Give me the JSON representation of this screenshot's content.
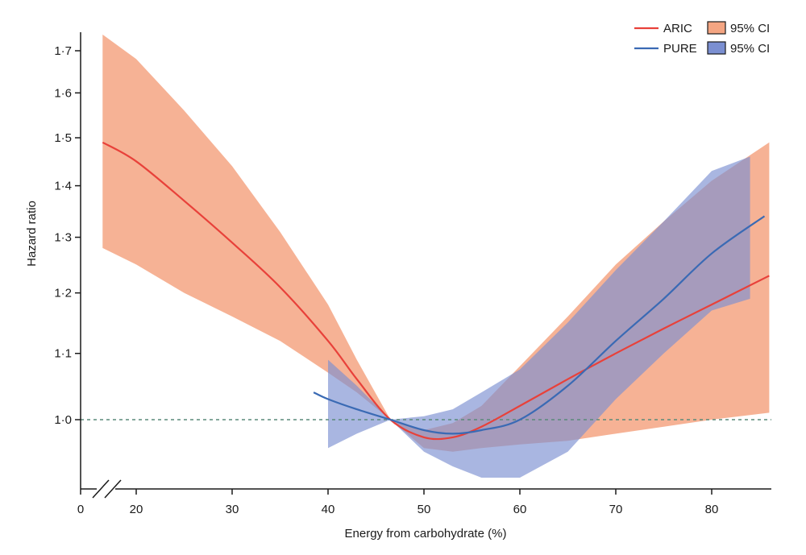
{
  "chart_data": {
    "type": "line",
    "title": "",
    "xlabel": "Energy from carbohydrate (%)",
    "ylabel": "Hazard ratio",
    "x_axis_break_label": "0",
    "xlim": [
      15,
      86
    ],
    "ylim": [
      0.9,
      1.75
    ],
    "y_scale": "log",
    "xticks": [
      20,
      30,
      40,
      50,
      60,
      70,
      80
    ],
    "yticks": [
      1.0,
      1.1,
      1.2,
      1.3,
      1.4,
      1.5,
      1.6,
      1.7
    ],
    "ytick_labels": [
      "1·0",
      "1·1",
      "1·2",
      "1·3",
      "1·4",
      "1·5",
      "1·6",
      "1·7"
    ],
    "reference_line": {
      "y": 1.0,
      "style": "dashed",
      "color": "#5a8a7a"
    },
    "legend": {
      "placement": "top-right"
    },
    "series": [
      {
        "name": "ARIC",
        "color": "#e8413a",
        "band_label": "95% CI",
        "band_color": "#f4a582",
        "x": [
          16.5,
          20,
          25,
          30,
          35,
          40,
          43,
          46.5,
          50,
          53,
          56,
          60,
          65,
          70,
          75,
          80,
          86
        ],
        "y": [
          1.49,
          1.45,
          1.37,
          1.29,
          1.21,
          1.12,
          1.06,
          1.0,
          0.975,
          0.975,
          0.99,
          1.02,
          1.06,
          1.1,
          1.14,
          1.18,
          1.23
        ],
        "lower": [
          1.28,
          1.25,
          1.2,
          1.16,
          1.12,
          1.07,
          1.04,
          1.0,
          0.96,
          0.955,
          0.96,
          0.965,
          0.97,
          0.98,
          0.99,
          1.0,
          1.01
        ],
        "upper": [
          1.74,
          1.68,
          1.56,
          1.44,
          1.31,
          1.18,
          1.09,
          1.0,
          0.985,
          0.995,
          1.02,
          1.08,
          1.16,
          1.25,
          1.33,
          1.41,
          1.49
        ]
      },
      {
        "name": "PURE",
        "color": "#3a6ab4",
        "band_label": "95% CI",
        "band_color": "#7b8fd1",
        "x": [
          38.5,
          40,
          43,
          46.5,
          50,
          53,
          56,
          60,
          65,
          70,
          75,
          80,
          85.5
        ],
        "y": [
          1.04,
          1.03,
          1.015,
          1.0,
          0.985,
          0.98,
          0.985,
          1.0,
          1.05,
          1.12,
          1.19,
          1.27,
          1.34
        ],
        "lower": [
          null,
          0.96,
          0.98,
          1.0,
          0.955,
          0.935,
          0.92,
          0.92,
          0.955,
          1.03,
          1.1,
          1.17,
          null
        ],
        "upper": [
          null,
          1.09,
          1.05,
          1.0,
          1.005,
          1.015,
          1.04,
          1.075,
          1.15,
          1.24,
          1.33,
          1.43,
          null
        ],
        "band_x_end": 84,
        "band_end_lower": 1.19,
        "band_end_upper": 1.46
      }
    ]
  }
}
